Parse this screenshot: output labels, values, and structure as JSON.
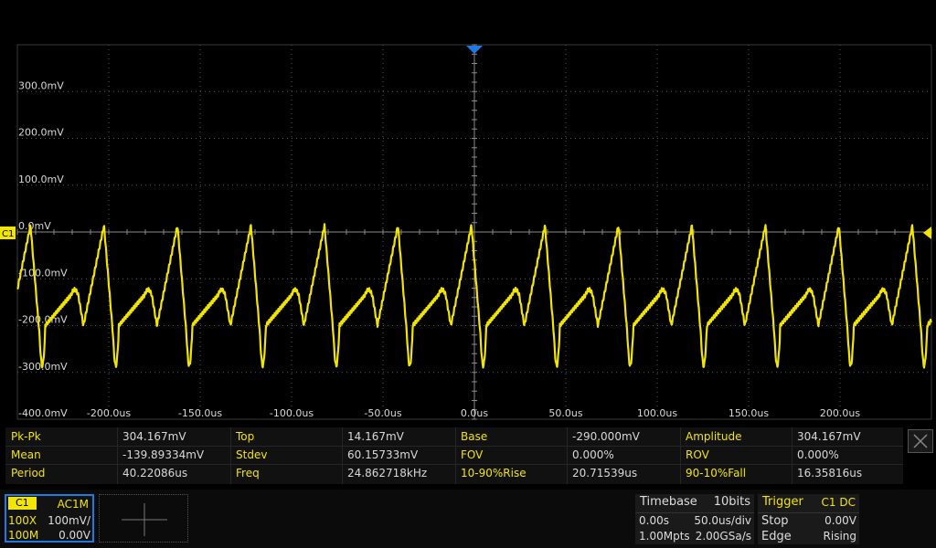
{
  "screen": {
    "channel_marker": "C1",
    "y_labels": [
      "300.0mV",
      "200.0mV",
      "100.0mV",
      "0.0mV",
      "-100.0mV",
      "-200.0mV",
      "-300.0mV",
      "-400.0mV"
    ],
    "x_labels": [
      "-200.0us",
      "-150.0us",
      "-100.0us",
      "-50.0us",
      "0.0us",
      "50.0us",
      "100.0us",
      "150.0us",
      "200.0us"
    ],
    "trace_color": "#f2e500",
    "grid_color": "#4a4a4a"
  },
  "measurements": [
    [
      {
        "label": "Pk-Pk",
        "value": "304.167mV"
      },
      {
        "label": "Top",
        "value": "14.167mV"
      },
      {
        "label": "Base",
        "value": "-290.000mV"
      },
      {
        "label": "Amplitude",
        "value": "304.167mV"
      }
    ],
    [
      {
        "label": "Mean",
        "value": "-139.89334mV"
      },
      {
        "label": "Stdev",
        "value": "60.15733mV"
      },
      {
        "label": "FOV",
        "value": "0.000%"
      },
      {
        "label": "ROV",
        "value": "0.000%"
      }
    ],
    [
      {
        "label": "Period",
        "value": "40.22086us"
      },
      {
        "label": "Freq",
        "value": "24.862718kHz"
      },
      {
        "label": "10-90%Rise",
        "value": "20.71539us"
      },
      {
        "label": "90-10%Fall",
        "value": "16.35816us"
      }
    ]
  ],
  "channel": {
    "name": "C1",
    "coupling": "AC1M",
    "probe": "100X",
    "scale": "100mV/",
    "bandwidth": "100M",
    "offset": "0.00V"
  },
  "timebase": {
    "title": "Timebase",
    "bits": "10bits",
    "delay": "0.00s",
    "scale": "50.0us/div",
    "points": "1.00Mpts",
    "rate": "2.00GSa/s"
  },
  "trigger": {
    "title": "Trigger",
    "source": "C1 DC",
    "mode": "Stop",
    "level": "0.00V",
    "type": "Edge",
    "slope": "Rising"
  }
}
